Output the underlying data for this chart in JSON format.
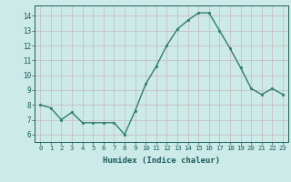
{
  "x": [
    0,
    1,
    2,
    3,
    4,
    5,
    6,
    7,
    8,
    9,
    10,
    11,
    12,
    13,
    14,
    15,
    16,
    17,
    18,
    19,
    20,
    21,
    22,
    23
  ],
  "y": [
    8.0,
    7.8,
    7.0,
    7.5,
    6.8,
    6.8,
    6.8,
    6.8,
    6.0,
    7.6,
    9.4,
    10.6,
    12.0,
    13.1,
    13.7,
    14.2,
    14.2,
    13.0,
    11.8,
    10.5,
    9.1,
    8.7,
    9.1,
    8.7
  ],
  "line_color": "#2e7d6e",
  "marker_color": "#2e7d6e",
  "bg_color": "#cceae7",
  "grid_color": "#c9b8b8",
  "xlabel": "Humidex (Indice chaleur)",
  "xlabel_color": "#1a5c5c",
  "tick_color": "#1a5c5c",
  "ylim": [
    5.5,
    14.7
  ],
  "xlim": [
    -0.5,
    23.5
  ],
  "yticks": [
    6,
    7,
    8,
    9,
    10,
    11,
    12,
    13,
    14
  ],
  "xticks": [
    0,
    1,
    2,
    3,
    4,
    5,
    6,
    7,
    8,
    9,
    10,
    11,
    12,
    13,
    14,
    15,
    16,
    17,
    18,
    19,
    20,
    21,
    22,
    23
  ]
}
